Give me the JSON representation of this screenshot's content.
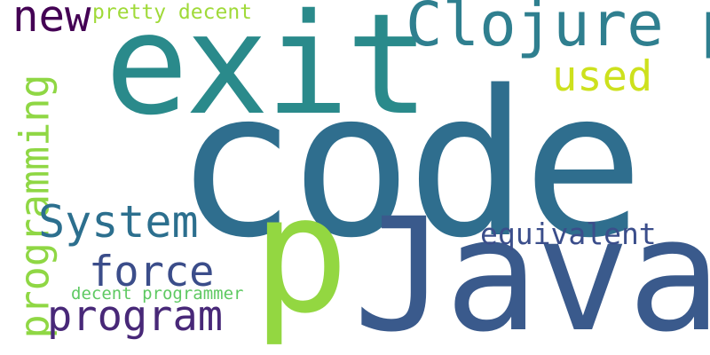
{
  "words": [
    {
      "text": "code",
      "color": "#2f6e8e"
    },
    {
      "text": "exit",
      "color": "#2a8a8b"
    },
    {
      "text": "Java",
      "color": "#3a5a8c"
    },
    {
      "text": "p",
      "color": "#93d741"
    },
    {
      "text": "Clojure p",
      "color": "#2f7f8f"
    },
    {
      "text": "new",
      "color": "#440154"
    },
    {
      "text": "pretty decent",
      "color": "#a0da39"
    },
    {
      "text": "used",
      "color": "#cde11d"
    },
    {
      "text": "programming",
      "color": "#8fd744"
    },
    {
      "text": "System",
      "color": "#2c6f8e"
    },
    {
      "text": "force",
      "color": "#3b4d8a"
    },
    {
      "text": "program",
      "color": "#482878"
    },
    {
      "text": "equivalent",
      "color": "#3b4e8b"
    },
    {
      "text": "decent programmer",
      "color": "#5ec962"
    }
  ]
}
